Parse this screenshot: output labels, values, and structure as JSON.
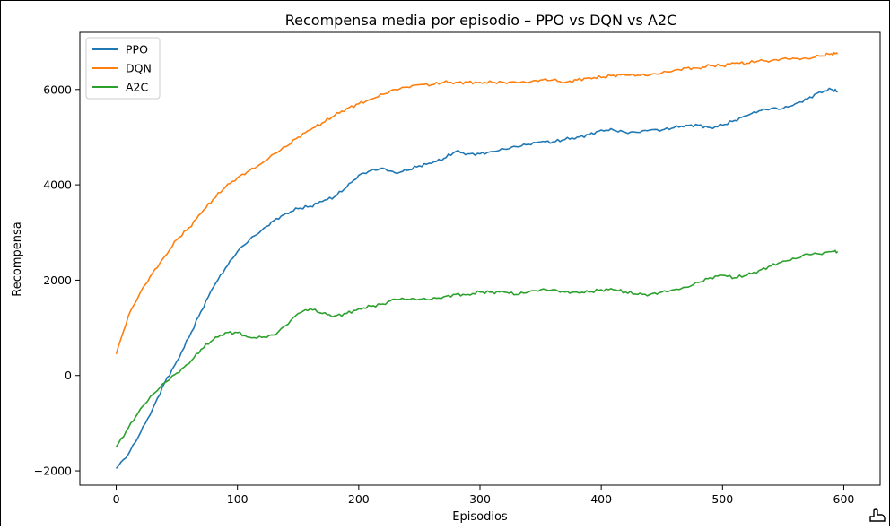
{
  "chart_data": {
    "type": "line",
    "title": "Recompensa media por episodio – PPO vs DQN vs A2C",
    "xlabel": "Episodios",
    "ylabel": "Recompensa",
    "xlim": [
      -30,
      630
    ],
    "ylim": [
      -2300,
      7200
    ],
    "x_ticks": [
      0,
      100,
      200,
      300,
      400,
      500,
      600
    ],
    "y_ticks": [
      -2000,
      0,
      2000,
      4000,
      6000
    ],
    "x_tick_labels": [
      "0",
      "100",
      "200",
      "300",
      "400",
      "500",
      "600"
    ],
    "y_tick_labels": [
      "−2000",
      "0",
      "2000",
      "4000",
      "6000"
    ],
    "grid": false,
    "legend_position": "top-left",
    "x": [
      0,
      10,
      20,
      30,
      40,
      50,
      60,
      70,
      80,
      90,
      100,
      110,
      120,
      130,
      140,
      150,
      160,
      170,
      180,
      190,
      200,
      210,
      220,
      230,
      240,
      250,
      260,
      270,
      280,
      290,
      300,
      310,
      320,
      330,
      340,
      350,
      360,
      370,
      380,
      390,
      400,
      410,
      420,
      430,
      440,
      450,
      460,
      470,
      480,
      490,
      500,
      510,
      520,
      530,
      540,
      550,
      560,
      570,
      580,
      590,
      595
    ],
    "series": [
      {
        "name": "PPO",
        "color": "#1f77b4",
        "values": [
          -1950,
          -1650,
          -1200,
          -700,
          -150,
          300,
          800,
          1350,
          1850,
          2250,
          2600,
          2850,
          3050,
          3250,
          3400,
          3500,
          3550,
          3650,
          3750,
          3950,
          4200,
          4300,
          4350,
          4250,
          4300,
          4400,
          4450,
          4550,
          4700,
          4650,
          4650,
          4700,
          4750,
          4800,
          4850,
          4900,
          4900,
          4950,
          5000,
          5050,
          5150,
          5150,
          5100,
          5100,
          5150,
          5150,
          5200,
          5250,
          5250,
          5200,
          5250,
          5350,
          5450,
          5550,
          5600,
          5600,
          5700,
          5800,
          5950,
          6000,
          5950
        ]
      },
      {
        "name": "DQN",
        "color": "#ff7f0e",
        "values": [
          450,
          1250,
          1750,
          2150,
          2500,
          2850,
          3100,
          3400,
          3700,
          3950,
          4150,
          4300,
          4450,
          4650,
          4800,
          5000,
          5150,
          5300,
          5450,
          5600,
          5700,
          5800,
          5900,
          6000,
          6050,
          6100,
          6100,
          6150,
          6150,
          6150,
          6150,
          6150,
          6150,
          6150,
          6150,
          6200,
          6200,
          6150,
          6200,
          6250,
          6250,
          6300,
          6300,
          6300,
          6300,
          6350,
          6400,
          6450,
          6450,
          6500,
          6500,
          6550,
          6550,
          6600,
          6600,
          6650,
          6650,
          6650,
          6700,
          6750,
          6750
        ]
      },
      {
        "name": "A2C",
        "color": "#2ca02c",
        "values": [
          -1500,
          -1100,
          -700,
          -400,
          -150,
          50,
          250,
          550,
          750,
          900,
          900,
          800,
          800,
          850,
          1050,
          1300,
          1400,
          1300,
          1250,
          1300,
          1400,
          1450,
          1500,
          1600,
          1600,
          1600,
          1600,
          1650,
          1700,
          1700,
          1750,
          1750,
          1750,
          1700,
          1750,
          1800,
          1800,
          1750,
          1750,
          1750,
          1800,
          1800,
          1750,
          1700,
          1700,
          1750,
          1800,
          1850,
          1950,
          2050,
          2100,
          2050,
          2100,
          2200,
          2300,
          2400,
          2450,
          2550,
          2550,
          2600,
          2600
        ]
      }
    ]
  },
  "cursor": {
    "icon": "hand-pointer-icon"
  }
}
